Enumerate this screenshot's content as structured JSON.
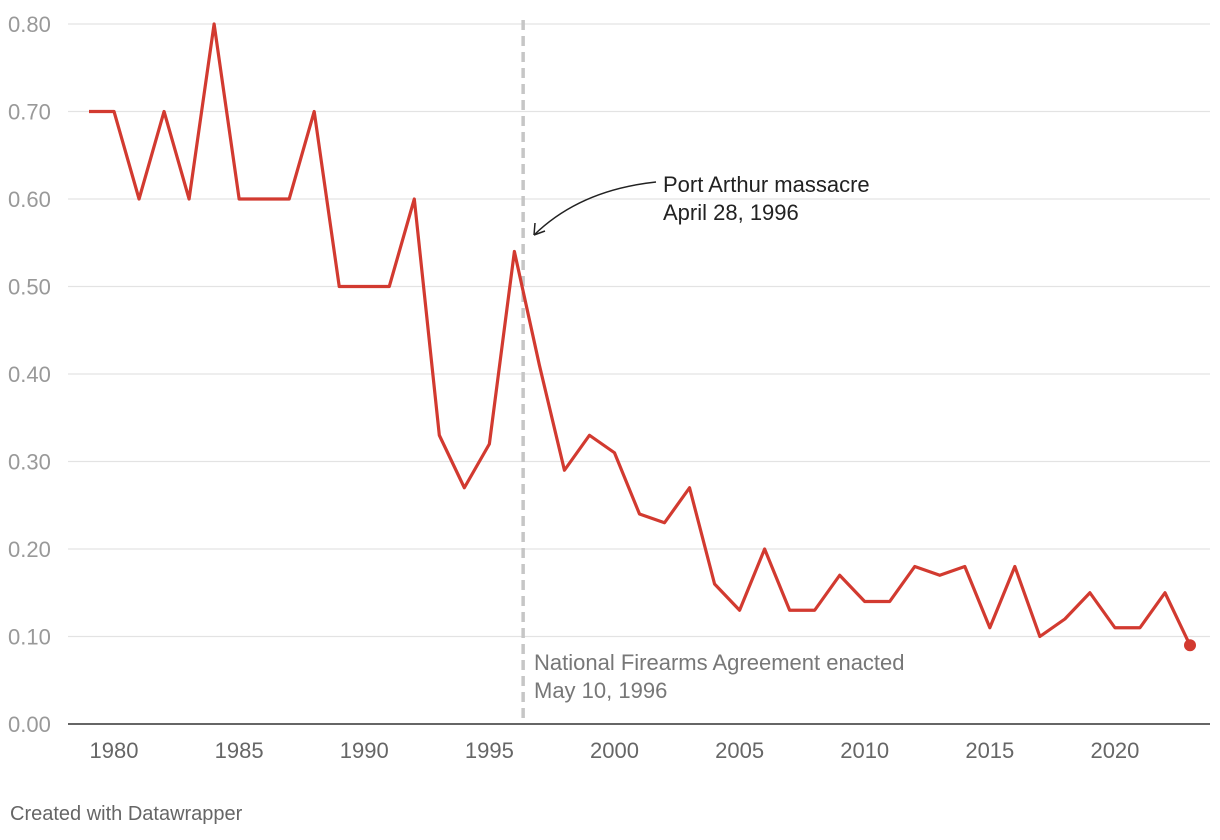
{
  "chart_data": {
    "type": "line",
    "title": "",
    "xlabel": "",
    "ylabel": "",
    "xlim": [
      1979,
      2023
    ],
    "ylim": [
      0,
      0.8
    ],
    "grid": true,
    "y_ticks": [
      "0.00",
      "0.10",
      "0.20",
      "0.30",
      "0.40",
      "0.50",
      "0.60",
      "0.70",
      "0.80"
    ],
    "x_ticks": [
      "1980",
      "1985",
      "1990",
      "1995",
      "2000",
      "2005",
      "2010",
      "2015",
      "2020"
    ],
    "series": [
      {
        "color": "#d23a30",
        "points": [
          {
            "x": 1979,
            "y": 0.7
          },
          {
            "x": 1980,
            "y": 0.7
          },
          {
            "x": 1981,
            "y": 0.6
          },
          {
            "x": 1982,
            "y": 0.7
          },
          {
            "x": 1983,
            "y": 0.6
          },
          {
            "x": 1984,
            "y": 0.8
          },
          {
            "x": 1985,
            "y": 0.6
          },
          {
            "x": 1986,
            "y": 0.6
          },
          {
            "x": 1987,
            "y": 0.6
          },
          {
            "x": 1988,
            "y": 0.7
          },
          {
            "x": 1989,
            "y": 0.5
          },
          {
            "x": 1990,
            "y": 0.5
          },
          {
            "x": 1991,
            "y": 0.5
          },
          {
            "x": 1992,
            "y": 0.6
          },
          {
            "x": 1993,
            "y": 0.33
          },
          {
            "x": 1994,
            "y": 0.27
          },
          {
            "x": 1995,
            "y": 0.32
          },
          {
            "x": 1996,
            "y": 0.54
          },
          {
            "x": 1997,
            "y": 0.41
          },
          {
            "x": 1998,
            "y": 0.29
          },
          {
            "x": 1999,
            "y": 0.33
          },
          {
            "x": 2000,
            "y": 0.31
          },
          {
            "x": 2001,
            "y": 0.24
          },
          {
            "x": 2002,
            "y": 0.23
          },
          {
            "x": 2003,
            "y": 0.27
          },
          {
            "x": 2004,
            "y": 0.16
          },
          {
            "x": 2005,
            "y": 0.13
          },
          {
            "x": 2006,
            "y": 0.2
          },
          {
            "x": 2007,
            "y": 0.13
          },
          {
            "x": 2008,
            "y": 0.13
          },
          {
            "x": 2009,
            "y": 0.17
          },
          {
            "x": 2010,
            "y": 0.14
          },
          {
            "x": 2011,
            "y": 0.14
          },
          {
            "x": 2012,
            "y": 0.18
          },
          {
            "x": 2013,
            "y": 0.17
          },
          {
            "x": 2014,
            "y": 0.18
          },
          {
            "x": 2015,
            "y": 0.11
          },
          {
            "x": 2016,
            "y": 0.18
          },
          {
            "x": 2017,
            "y": 0.1
          },
          {
            "x": 2018,
            "y": 0.12
          },
          {
            "x": 2019,
            "y": 0.15
          },
          {
            "x": 2020,
            "y": 0.11
          },
          {
            "x": 2021,
            "y": 0.11
          },
          {
            "x": 2022,
            "y": 0.15
          },
          {
            "x": 2023,
            "y": 0.09
          }
        ]
      }
    ],
    "reference_line": {
      "x": 1996.35,
      "style": "dashed",
      "color": "#c6c6c6"
    },
    "annotations": [
      {
        "line1": "Port Arthur massacre",
        "line2": "April 28, 1996",
        "color": "#222222"
      },
      {
        "line1": "National Firearms Agreement enacted",
        "line2": "May 10, 1996",
        "color": "#777777"
      }
    ]
  },
  "footer": {
    "credit": "Created with Datawrapper"
  }
}
